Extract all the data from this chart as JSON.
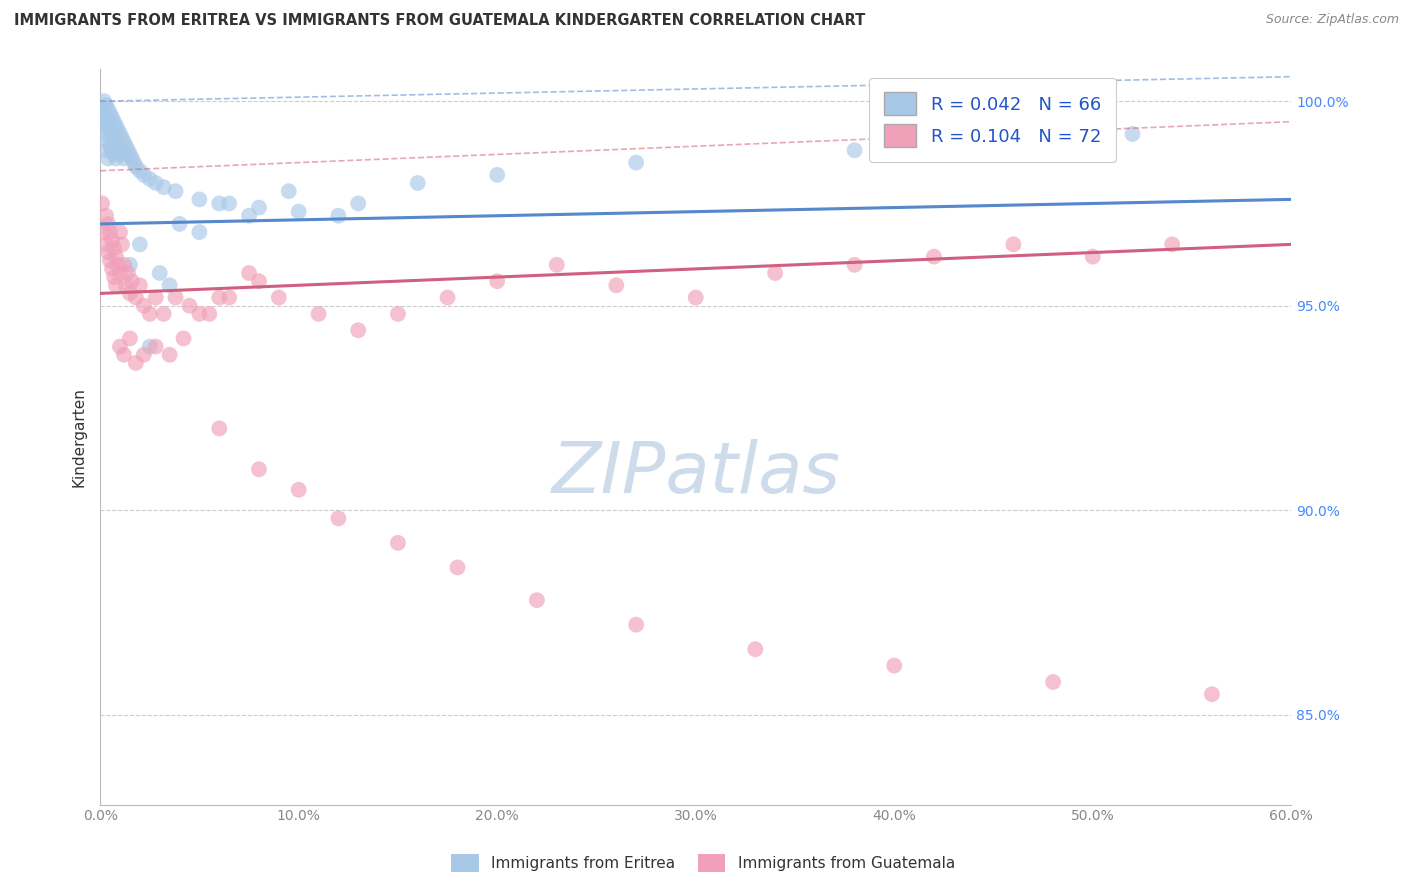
{
  "title": "IMMIGRANTS FROM ERITREA VS IMMIGRANTS FROM GUATEMALA KINDERGARTEN CORRELATION CHART",
  "source": "Source: ZipAtlas.com",
  "ylabel": "Kindergarten",
  "xlim": [
    0.0,
    0.6
  ],
  "ylim": [
    0.828,
    1.008
  ],
  "xtick_vals": [
    0.0,
    0.1,
    0.2,
    0.3,
    0.4,
    0.5,
    0.6
  ],
  "xtick_labels": [
    "0.0%",
    "10.0%",
    "20.0%",
    "30.0%",
    "40.0%",
    "50.0%",
    "60.0%"
  ],
  "ytick_vals": [
    0.85,
    0.9,
    0.95,
    1.0
  ],
  "ytick_labels": [
    "85.0%",
    "90.0%",
    "95.0%",
    "100.0%"
  ],
  "eritrea_R": 0.042,
  "eritrea_N": 66,
  "guatemala_R": 0.104,
  "guatemala_N": 72,
  "eritrea_color": "#a8c8e8",
  "eritrea_line_color": "#5588cc",
  "guatemala_color": "#f0a0b8",
  "guatemala_line_color": "#d06080",
  "background_color": "#ffffff",
  "grid_color": "#cccccc",
  "title_color": "#333333",
  "source_color": "#888888",
  "tick_color_x": "#888888",
  "tick_color_y": "#4488ff",
  "ylabel_color": "#333333",
  "watermark_color": "#c8d8e8",
  "legend_edge_color": "#cccccc",
  "legend_text_color": "#333333",
  "legend_rn_color": "#2255cc",
  "bottom_legend_text_color": "#333333",
  "eritrea_line_intercept": 0.97,
  "eritrea_line_slope": 0.01,
  "guatemala_line_intercept": 0.953,
  "guatemala_line_slope": 0.02,
  "eritrea_x": [
    0.001,
    0.001,
    0.002,
    0.002,
    0.002,
    0.003,
    0.003,
    0.003,
    0.003,
    0.004,
    0.004,
    0.004,
    0.004,
    0.005,
    0.005,
    0.005,
    0.006,
    0.006,
    0.006,
    0.007,
    0.007,
    0.007,
    0.008,
    0.008,
    0.008,
    0.009,
    0.009,
    0.01,
    0.01,
    0.011,
    0.011,
    0.012,
    0.012,
    0.013,
    0.014,
    0.015,
    0.016,
    0.017,
    0.018,
    0.02,
    0.022,
    0.025,
    0.028,
    0.032,
    0.038,
    0.05,
    0.065,
    0.08,
    0.1,
    0.12,
    0.015,
    0.02,
    0.025,
    0.03,
    0.035,
    0.04,
    0.05,
    0.06,
    0.075,
    0.095,
    0.13,
    0.16,
    0.2,
    0.27,
    0.38,
    0.52
  ],
  "eritrea_y": [
    0.998,
    0.995,
    1.0,
    0.997,
    0.993,
    0.999,
    0.996,
    0.992,
    0.988,
    0.998,
    0.994,
    0.99,
    0.986,
    0.997,
    0.993,
    0.989,
    0.996,
    0.992,
    0.988,
    0.995,
    0.991,
    0.987,
    0.994,
    0.99,
    0.986,
    0.993,
    0.989,
    0.992,
    0.988,
    0.991,
    0.987,
    0.99,
    0.986,
    0.989,
    0.988,
    0.987,
    0.986,
    0.985,
    0.984,
    0.983,
    0.982,
    0.981,
    0.98,
    0.979,
    0.978,
    0.976,
    0.975,
    0.974,
    0.973,
    0.972,
    0.96,
    0.965,
    0.94,
    0.958,
    0.955,
    0.97,
    0.968,
    0.975,
    0.972,
    0.978,
    0.975,
    0.98,
    0.982,
    0.985,
    0.988,
    0.992
  ],
  "guatemala_x": [
    0.001,
    0.002,
    0.003,
    0.003,
    0.004,
    0.004,
    0.005,
    0.005,
    0.006,
    0.006,
    0.007,
    0.007,
    0.008,
    0.008,
    0.009,
    0.01,
    0.01,
    0.011,
    0.012,
    0.013,
    0.014,
    0.015,
    0.016,
    0.018,
    0.02,
    0.022,
    0.025,
    0.028,
    0.032,
    0.038,
    0.045,
    0.055,
    0.065,
    0.08,
    0.01,
    0.012,
    0.015,
    0.018,
    0.022,
    0.028,
    0.035,
    0.042,
    0.05,
    0.06,
    0.075,
    0.09,
    0.11,
    0.13,
    0.15,
    0.175,
    0.2,
    0.23,
    0.26,
    0.3,
    0.34,
    0.38,
    0.42,
    0.46,
    0.5,
    0.54,
    0.06,
    0.08,
    0.1,
    0.12,
    0.15,
    0.18,
    0.22,
    0.27,
    0.33,
    0.4,
    0.48,
    0.56
  ],
  "guatemala_y": [
    0.975,
    0.968,
    0.972,
    0.965,
    0.97,
    0.963,
    0.968,
    0.961,
    0.966,
    0.959,
    0.964,
    0.957,
    0.962,
    0.955,
    0.96,
    0.968,
    0.958,
    0.965,
    0.96,
    0.955,
    0.958,
    0.953,
    0.956,
    0.952,
    0.955,
    0.95,
    0.948,
    0.952,
    0.948,
    0.952,
    0.95,
    0.948,
    0.952,
    0.956,
    0.94,
    0.938,
    0.942,
    0.936,
    0.938,
    0.94,
    0.938,
    0.942,
    0.948,
    0.952,
    0.958,
    0.952,
    0.948,
    0.944,
    0.948,
    0.952,
    0.956,
    0.96,
    0.955,
    0.952,
    0.958,
    0.96,
    0.962,
    0.965,
    0.962,
    0.965,
    0.92,
    0.91,
    0.905,
    0.898,
    0.892,
    0.886,
    0.878,
    0.872,
    0.866,
    0.862,
    0.858,
    0.855
  ]
}
